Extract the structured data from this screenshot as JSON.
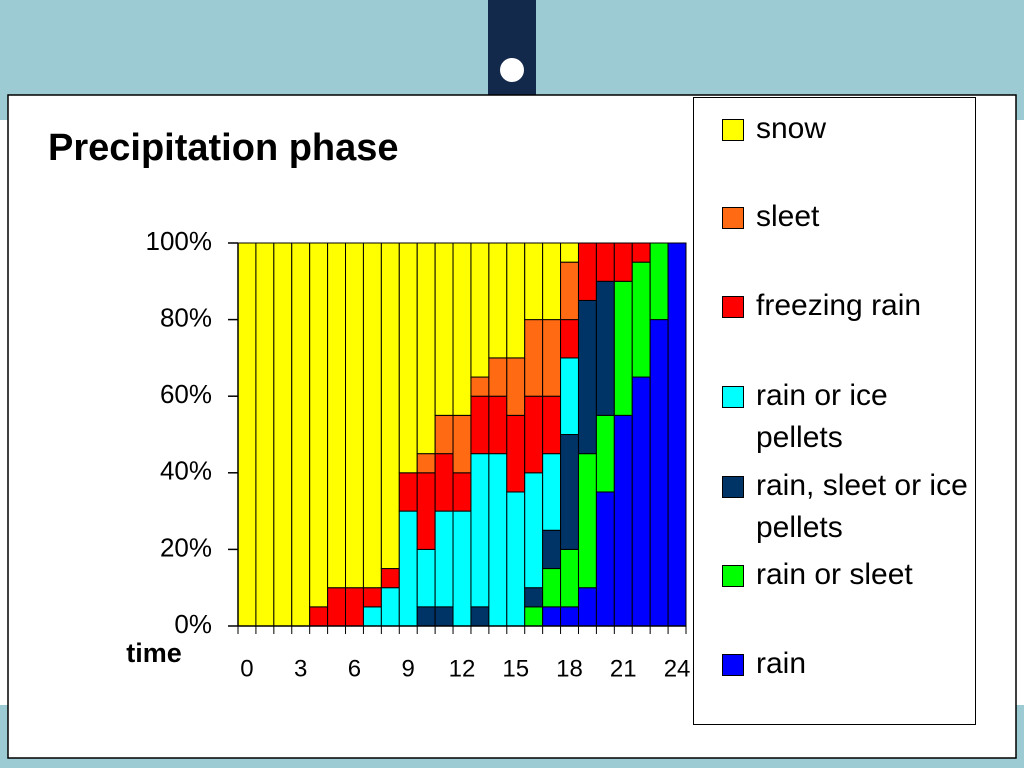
{
  "chart_data": {
    "type": "stacked_bar",
    "title": "Precipitation phase",
    "x_label": "time",
    "categories": [
      0,
      null,
      null,
      3,
      null,
      null,
      6,
      null,
      null,
      9,
      null,
      null,
      12,
      null,
      null,
      15,
      null,
      null,
      18,
      null,
      null,
      21,
      null,
      null,
      24
    ],
    "ylim": [
      0,
      100
    ],
    "yticks": [
      {
        "value": 0,
        "label": "0%"
      },
      {
        "value": 20,
        "label": "20%"
      },
      {
        "value": 40,
        "label": "40%"
      },
      {
        "value": 60,
        "label": "60%"
      },
      {
        "value": 80,
        "label": "80%"
      },
      {
        "value": 100,
        "label": "100%"
      }
    ],
    "grid": false,
    "series": [
      {
        "name": "snow",
        "color": "#ffff00",
        "values": [
          100,
          100,
          100,
          100,
          95,
          90,
          90,
          90,
          85,
          60,
          55,
          45,
          45,
          35,
          30,
          30,
          20,
          20,
          5,
          0,
          0,
          0,
          0,
          0,
          0
        ]
      },
      {
        "name": "sleet",
        "color": "#ff6a13",
        "values": [
          0,
          0,
          0,
          0,
          0,
          0,
          0,
          0,
          0,
          0,
          5,
          10,
          15,
          5,
          10,
          15,
          20,
          20,
          15,
          0,
          0,
          0,
          0,
          0,
          0
        ]
      },
      {
        "name": "freezing rain",
        "color": "#ff0000",
        "values": [
          0,
          0,
          0,
          0,
          5,
          10,
          10,
          5,
          5,
          10,
          20,
          15,
          10,
          15,
          15,
          20,
          20,
          15,
          10,
          15,
          10,
          10,
          5,
          0,
          0
        ]
      },
      {
        "name": "rain or ice pellets",
        "color": "#00ffff",
        "values": [
          0,
          0,
          0,
          0,
          0,
          0,
          0,
          5,
          10,
          30,
          15,
          25,
          30,
          40,
          45,
          35,
          30,
          20,
          20,
          0,
          0,
          0,
          0,
          0,
          0
        ]
      },
      {
        "name": "rain, sleet or ice pellets",
        "color": "#003366",
        "values": [
          0,
          0,
          0,
          0,
          0,
          0,
          0,
          0,
          0,
          0,
          5,
          5,
          0,
          5,
          0,
          0,
          5,
          10,
          30,
          40,
          35,
          0,
          0,
          0,
          0
        ]
      },
      {
        "name": "rain or sleet",
        "color": "#00ff00",
        "values": [
          0,
          0,
          0,
          0,
          0,
          0,
          0,
          0,
          0,
          0,
          0,
          0,
          0,
          0,
          0,
          0,
          5,
          10,
          15,
          35,
          20,
          35,
          30,
          20,
          0
        ]
      },
      {
        "name": "rain",
        "color": "#0000ff",
        "values": [
          0,
          0,
          0,
          0,
          0,
          0,
          0,
          0,
          0,
          0,
          0,
          0,
          0,
          0,
          0,
          0,
          0,
          5,
          5,
          10,
          35,
          55,
          65,
          80,
          100
        ]
      }
    ]
  }
}
